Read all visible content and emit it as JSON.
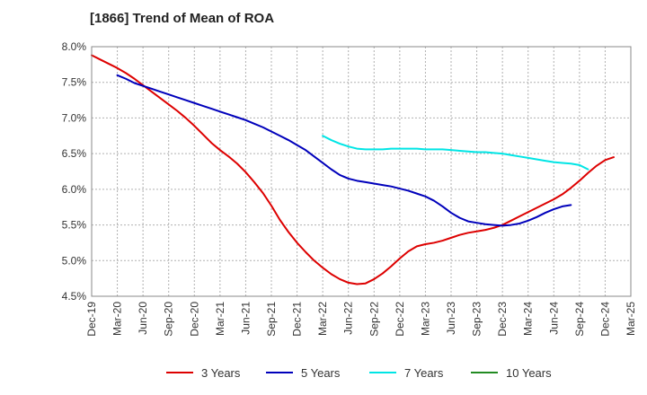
{
  "chart_data": {
    "type": "line",
    "title": "[1866]  Trend of Mean of ROA",
    "xlabel": "",
    "ylabel": "",
    "x_ticks": [
      "Dec-19",
      "Mar-20",
      "Jun-20",
      "Sep-20",
      "Dec-20",
      "Mar-21",
      "Jun-21",
      "Sep-21",
      "Dec-21",
      "Mar-22",
      "Jun-22",
      "Sep-22",
      "Dec-22",
      "Mar-23",
      "Jun-23",
      "Sep-23",
      "Dec-23",
      "Mar-24",
      "Jun-24",
      "Sep-24",
      "Dec-24",
      "Mar-25"
    ],
    "y_ticks": [
      "4.5%",
      "5.0%",
      "5.5%",
      "6.0%",
      "6.5%",
      "7.0%",
      "7.5%",
      "8.0%"
    ],
    "ylim": [
      4.5,
      8.0
    ],
    "y_unit": "%",
    "grid": true,
    "legend_position": "bottom",
    "series": [
      {
        "name": "3 Years",
        "color": "#dd0000",
        "start_index": 0,
        "values": [
          7.88,
          7.82,
          7.76,
          7.7,
          7.63,
          7.55,
          7.46,
          7.37,
          7.28,
          7.19,
          7.1,
          7.0,
          6.89,
          6.77,
          6.65,
          6.55,
          6.46,
          6.36,
          6.24,
          6.1,
          5.95,
          5.77,
          5.57,
          5.4,
          5.25,
          5.12,
          5.0,
          4.9,
          4.81,
          4.74,
          4.69,
          4.67,
          4.68,
          4.74,
          4.82,
          4.92,
          5.03,
          5.13,
          5.2,
          5.23,
          5.25,
          5.28,
          5.32,
          5.36,
          5.39,
          5.41,
          5.43,
          5.46,
          5.5,
          5.56,
          5.62,
          5.68,
          5.74,
          5.8,
          5.86,
          5.93,
          6.02,
          6.12,
          6.23,
          6.33,
          6.41,
          6.45
        ]
      },
      {
        "name": "5 Years",
        "color": "#0000bb",
        "start_index": 3,
        "values": [
          7.6,
          7.55,
          7.49,
          7.45,
          7.41,
          7.37,
          7.33,
          7.29,
          7.25,
          7.21,
          7.17,
          7.13,
          7.09,
          7.05,
          7.01,
          6.97,
          6.92,
          6.87,
          6.81,
          6.75,
          6.69,
          6.62,
          6.55,
          6.46,
          6.37,
          6.28,
          6.2,
          6.15,
          6.12,
          6.1,
          6.08,
          6.06,
          6.04,
          6.01,
          5.98,
          5.94,
          5.9,
          5.84,
          5.76,
          5.67,
          5.6,
          5.55,
          5.53,
          5.51,
          5.5,
          5.49,
          5.5,
          5.52,
          5.56,
          5.61,
          5.67,
          5.72,
          5.76,
          5.78
        ]
      },
      {
        "name": "7 Years",
        "color": "#00e5e5",
        "start_index": 27,
        "values": [
          6.75,
          6.69,
          6.64,
          6.6,
          6.57,
          6.56,
          6.56,
          6.56,
          6.57,
          6.57,
          6.57,
          6.57,
          6.56,
          6.56,
          6.56,
          6.55,
          6.54,
          6.53,
          6.52,
          6.52,
          6.51,
          6.5,
          6.48,
          6.46,
          6.44,
          6.42,
          6.4,
          6.38,
          6.37,
          6.36,
          6.34,
          6.28
        ]
      },
      {
        "name": "10 Years",
        "color": "#228b22",
        "start_index": 0,
        "values": []
      }
    ]
  }
}
